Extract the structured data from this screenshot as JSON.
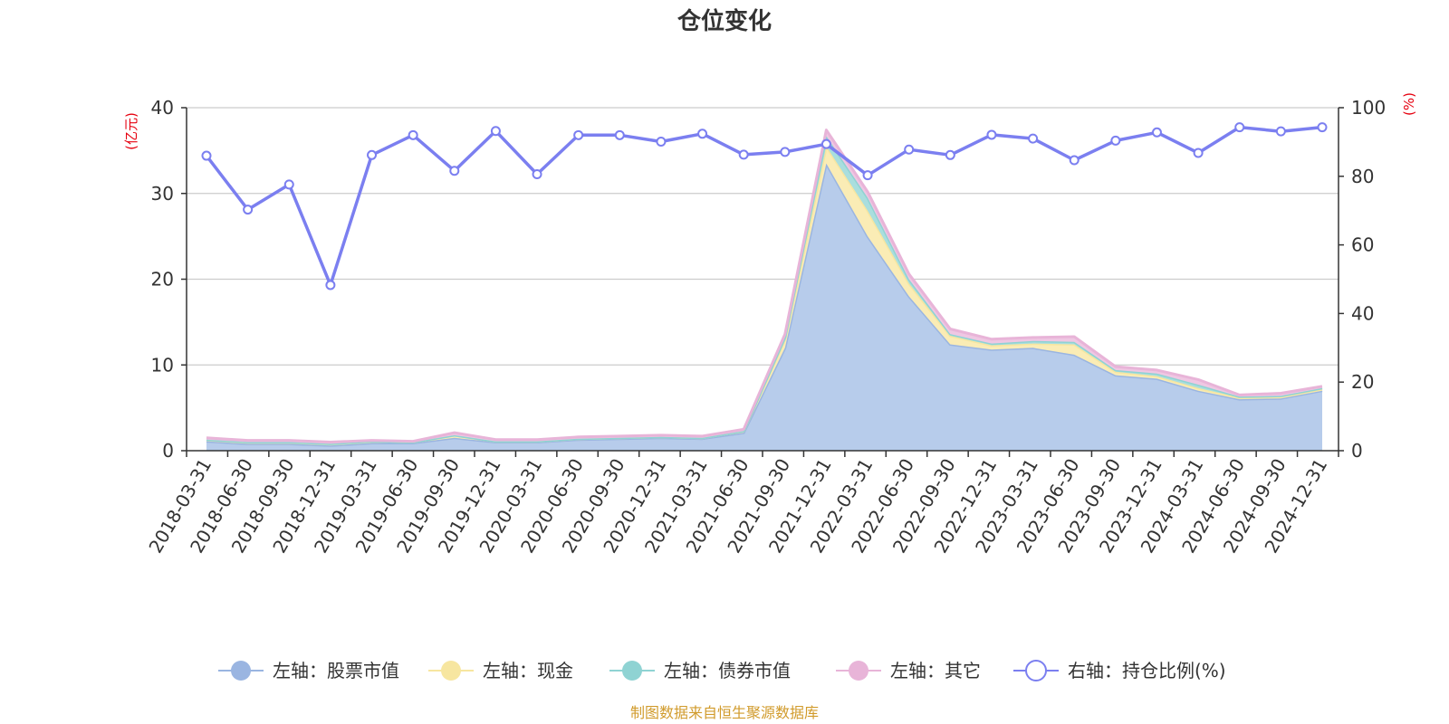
{
  "chart_data": {
    "type": "area",
    "title": "仓位变化",
    "left_axis": {
      "unit": "(亿元)",
      "ylim": [
        0,
        40
      ],
      "ticks": [
        0,
        10,
        20,
        30,
        40
      ]
    },
    "right_axis": {
      "unit": "(%)",
      "ylim": [
        0,
        100
      ],
      "ticks": [
        0,
        20,
        40,
        60,
        80,
        100
      ]
    },
    "categories": [
      "2018-03-31",
      "2018-06-30",
      "2018-09-30",
      "2018-12-31",
      "2019-03-31",
      "2019-06-30",
      "2019-09-30",
      "2019-12-31",
      "2020-03-31",
      "2020-06-30",
      "2020-09-30",
      "2020-12-31",
      "2021-03-31",
      "2021-06-30",
      "2021-09-30",
      "2021-12-31",
      "2022-03-31",
      "2022-06-30",
      "2022-09-30",
      "2022-12-31",
      "2023-03-31",
      "2023-06-30",
      "2023-09-30",
      "2023-12-31",
      "2024-03-31",
      "2024-06-30",
      "2024-09-30",
      "2024-12-31"
    ],
    "series": [
      {
        "name": "左轴：股票市值",
        "axis": "left",
        "stack": true,
        "color": "#9ab5e1",
        "fill": "#b7cceb",
        "values": [
          1.1,
          0.8,
          0.8,
          0.6,
          0.9,
          0.9,
          1.5,
          1.0,
          1.0,
          1.3,
          1.4,
          1.5,
          1.4,
          2.1,
          12.0,
          33.5,
          25.0,
          18.0,
          12.4,
          11.8,
          12.0,
          11.2,
          8.8,
          8.4,
          7.0,
          6.0,
          6.1,
          7.0
        ]
      },
      {
        "name": "左轴：现金",
        "axis": "left",
        "stack": true,
        "color": "#f7e6a0",
        "fill": "#faecb5",
        "values": [
          0.2,
          0.2,
          0.2,
          0.2,
          0.2,
          0.1,
          0.3,
          0.1,
          0.1,
          0.1,
          0.1,
          0.1,
          0.1,
          0.2,
          1.0,
          2.0,
          3.0,
          1.5,
          1.0,
          0.5,
          0.5,
          1.2,
          0.4,
          0.3,
          0.3,
          0.2,
          0.2,
          0.2
        ]
      },
      {
        "name": "左轴：债券市值",
        "axis": "left",
        "stack": true,
        "color": "#8fd3d3",
        "fill": "#a9dede",
        "values": [
          0.0,
          0.0,
          0.0,
          0.0,
          0.0,
          0.0,
          0.0,
          0.0,
          0.0,
          0.0,
          0.0,
          0.0,
          0.0,
          0.0,
          0.2,
          1.2,
          1.5,
          0.5,
          0.2,
          0.2,
          0.3,
          0.3,
          0.2,
          0.3,
          0.4,
          0.1,
          0.1,
          0.1
        ]
      },
      {
        "name": "左轴：其它",
        "axis": "left",
        "stack": true,
        "color": "#e8b4d8",
        "fill": "#efc7e3",
        "values": [
          0.2,
          0.2,
          0.2,
          0.2,
          0.1,
          0.1,
          0.3,
          0.2,
          0.2,
          0.2,
          0.2,
          0.2,
          0.2,
          0.2,
          0.4,
          0.7,
          0.7,
          0.6,
          0.6,
          0.5,
          0.4,
          0.6,
          0.4,
          0.4,
          0.6,
          0.2,
          0.3,
          0.2
        ]
      },
      {
        "name": "右轴：持仓比例(%)",
        "axis": "right",
        "stack": false,
        "color": "#7b7ff0",
        "fill": "#ffffff",
        "values": [
          86.0,
          70.3,
          77.6,
          48.3,
          86.2,
          92.0,
          81.6,
          93.2,
          80.6,
          92.0,
          92.0,
          90.1,
          92.4,
          86.3,
          87.1,
          89.4,
          80.3,
          87.8,
          86.2,
          92.1,
          91.0,
          84.7,
          90.4,
          92.8,
          86.8,
          94.3,
          93.1,
          94.3
        ]
      }
    ],
    "legend_position": "bottom-center",
    "grid": true
  },
  "source": "制图数据来自恒生聚源数据库"
}
